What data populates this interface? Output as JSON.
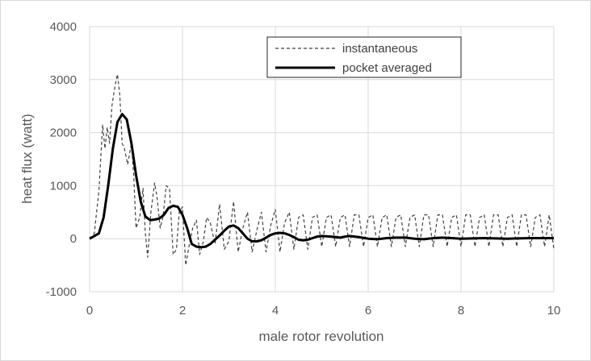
{
  "chart_data": {
    "type": "line",
    "title": "",
    "xlabel": "male rotor revolution",
    "ylabel": "heat flux  (watt)",
    "xlim": [
      0,
      10
    ],
    "ylim": [
      -1000,
      4000
    ],
    "x_ticks": [
      0,
      2,
      4,
      6,
      8,
      10
    ],
    "y_ticks": [
      -1000,
      0,
      1000,
      2000,
      3000,
      4000
    ],
    "grid": true,
    "legend_position": "top-right",
    "series": [
      {
        "name": "instantaneous",
        "style": "dashed",
        "color": "#404040",
        "x": [
          0,
          0.1,
          0.2,
          0.28,
          0.33,
          0.38,
          0.43,
          0.48,
          0.55,
          0.6,
          0.65,
          0.7,
          0.75,
          0.82,
          0.9,
          0.95,
          1.0,
          1.08,
          1.15,
          1.2,
          1.25,
          1.32,
          1.4,
          1.45,
          1.52,
          1.58,
          1.65,
          1.72,
          1.8,
          1.87,
          1.93,
          2.0,
          2.07,
          2.15,
          2.22,
          2.3,
          2.37,
          2.45,
          2.52,
          2.6,
          2.7,
          2.8,
          2.9,
          3.0,
          3.1,
          3.2,
          3.3,
          3.4,
          3.5,
          3.6,
          3.7,
          3.8,
          3.9,
          4.0,
          4.1,
          4.2,
          4.3,
          4.4,
          4.5,
          4.6,
          4.7,
          4.8,
          4.9,
          5.0,
          5.1,
          5.2,
          5.3,
          5.4,
          5.5,
          5.6,
          5.7,
          5.8,
          5.9,
          6.0,
          6.1,
          6.2,
          6.3,
          6.4,
          6.5,
          6.6,
          6.7,
          6.8,
          6.9,
          7.0,
          7.1,
          7.2,
          7.3,
          7.4,
          7.5,
          7.6,
          7.7,
          7.8,
          7.9,
          8.0,
          8.1,
          8.2,
          8.3,
          8.4,
          8.5,
          8.6,
          8.7,
          8.8,
          8.9,
          9.0,
          9.1,
          9.2,
          9.3,
          9.4,
          9.5,
          9.6,
          9.7,
          9.8,
          9.9,
          10.0
        ],
        "y": [
          0,
          100,
          900,
          2150,
          1700,
          2100,
          1800,
          2500,
          2900,
          3100,
          2700,
          1800,
          1700,
          1400,
          1800,
          1200,
          200,
          400,
          950,
          100,
          -350,
          500,
          1050,
          800,
          200,
          400,
          1000,
          950,
          -300,
          -200,
          500,
          600,
          -500,
          -100,
          200,
          350,
          -300,
          -50,
          400,
          300,
          -100,
          650,
          -200,
          -50,
          700,
          -250,
          200,
          500,
          -250,
          150,
          500,
          -250,
          250,
          550,
          -250,
          300,
          500,
          -200,
          400,
          450,
          -200,
          400,
          450,
          -150,
          400,
          450,
          -150,
          400,
          450,
          -150,
          450,
          450,
          -150,
          400,
          450,
          -150,
          400,
          450,
          -150,
          400,
          450,
          -150,
          400,
          450,
          -150,
          450,
          450,
          -150,
          450,
          450,
          -150,
          400,
          450,
          -150,
          450,
          450,
          -150,
          400,
          450,
          -150,
          450,
          450,
          -150,
          400,
          450,
          -150,
          450,
          450,
          -150,
          400,
          450,
          -150,
          450,
          -200
        ]
      },
      {
        "name": "pocket averaged",
        "style": "solid",
        "color": "#000000",
        "x": [
          0,
          0.1,
          0.2,
          0.3,
          0.4,
          0.5,
          0.6,
          0.7,
          0.8,
          0.9,
          1.0,
          1.1,
          1.2,
          1.3,
          1.4,
          1.5,
          1.6,
          1.7,
          1.8,
          1.9,
          2.0,
          2.1,
          2.2,
          2.3,
          2.4,
          2.5,
          2.6,
          2.7,
          2.8,
          2.9,
          3.0,
          3.1,
          3.2,
          3.3,
          3.4,
          3.5,
          3.6,
          3.7,
          3.8,
          3.9,
          4.0,
          4.1,
          4.2,
          4.3,
          4.4,
          4.5,
          4.6,
          4.7,
          4.8,
          4.9,
          5.0,
          5.2,
          5.4,
          5.5,
          5.6,
          5.8,
          6.0,
          6.2,
          6.4,
          6.6,
          6.8,
          7.0,
          7.2,
          7.4,
          7.6,
          7.8,
          8.0,
          8.5,
          9.0,
          9.5,
          10.0
        ],
        "y": [
          0,
          50,
          100,
          400,
          1000,
          1700,
          2200,
          2350,
          2250,
          1800,
          1200,
          700,
          420,
          350,
          360,
          380,
          450,
          580,
          620,
          600,
          450,
          200,
          -100,
          -150,
          -160,
          -150,
          -100,
          -20,
          60,
          150,
          230,
          250,
          200,
          100,
          0,
          -50,
          -50,
          -30,
          20,
          70,
          100,
          110,
          100,
          70,
          30,
          -20,
          -30,
          -20,
          10,
          40,
          50,
          40,
          20,
          40,
          50,
          30,
          0,
          -10,
          10,
          20,
          20,
          0,
          -10,
          10,
          20,
          10,
          0,
          10,
          0,
          10,
          10
        ]
      }
    ]
  }
}
